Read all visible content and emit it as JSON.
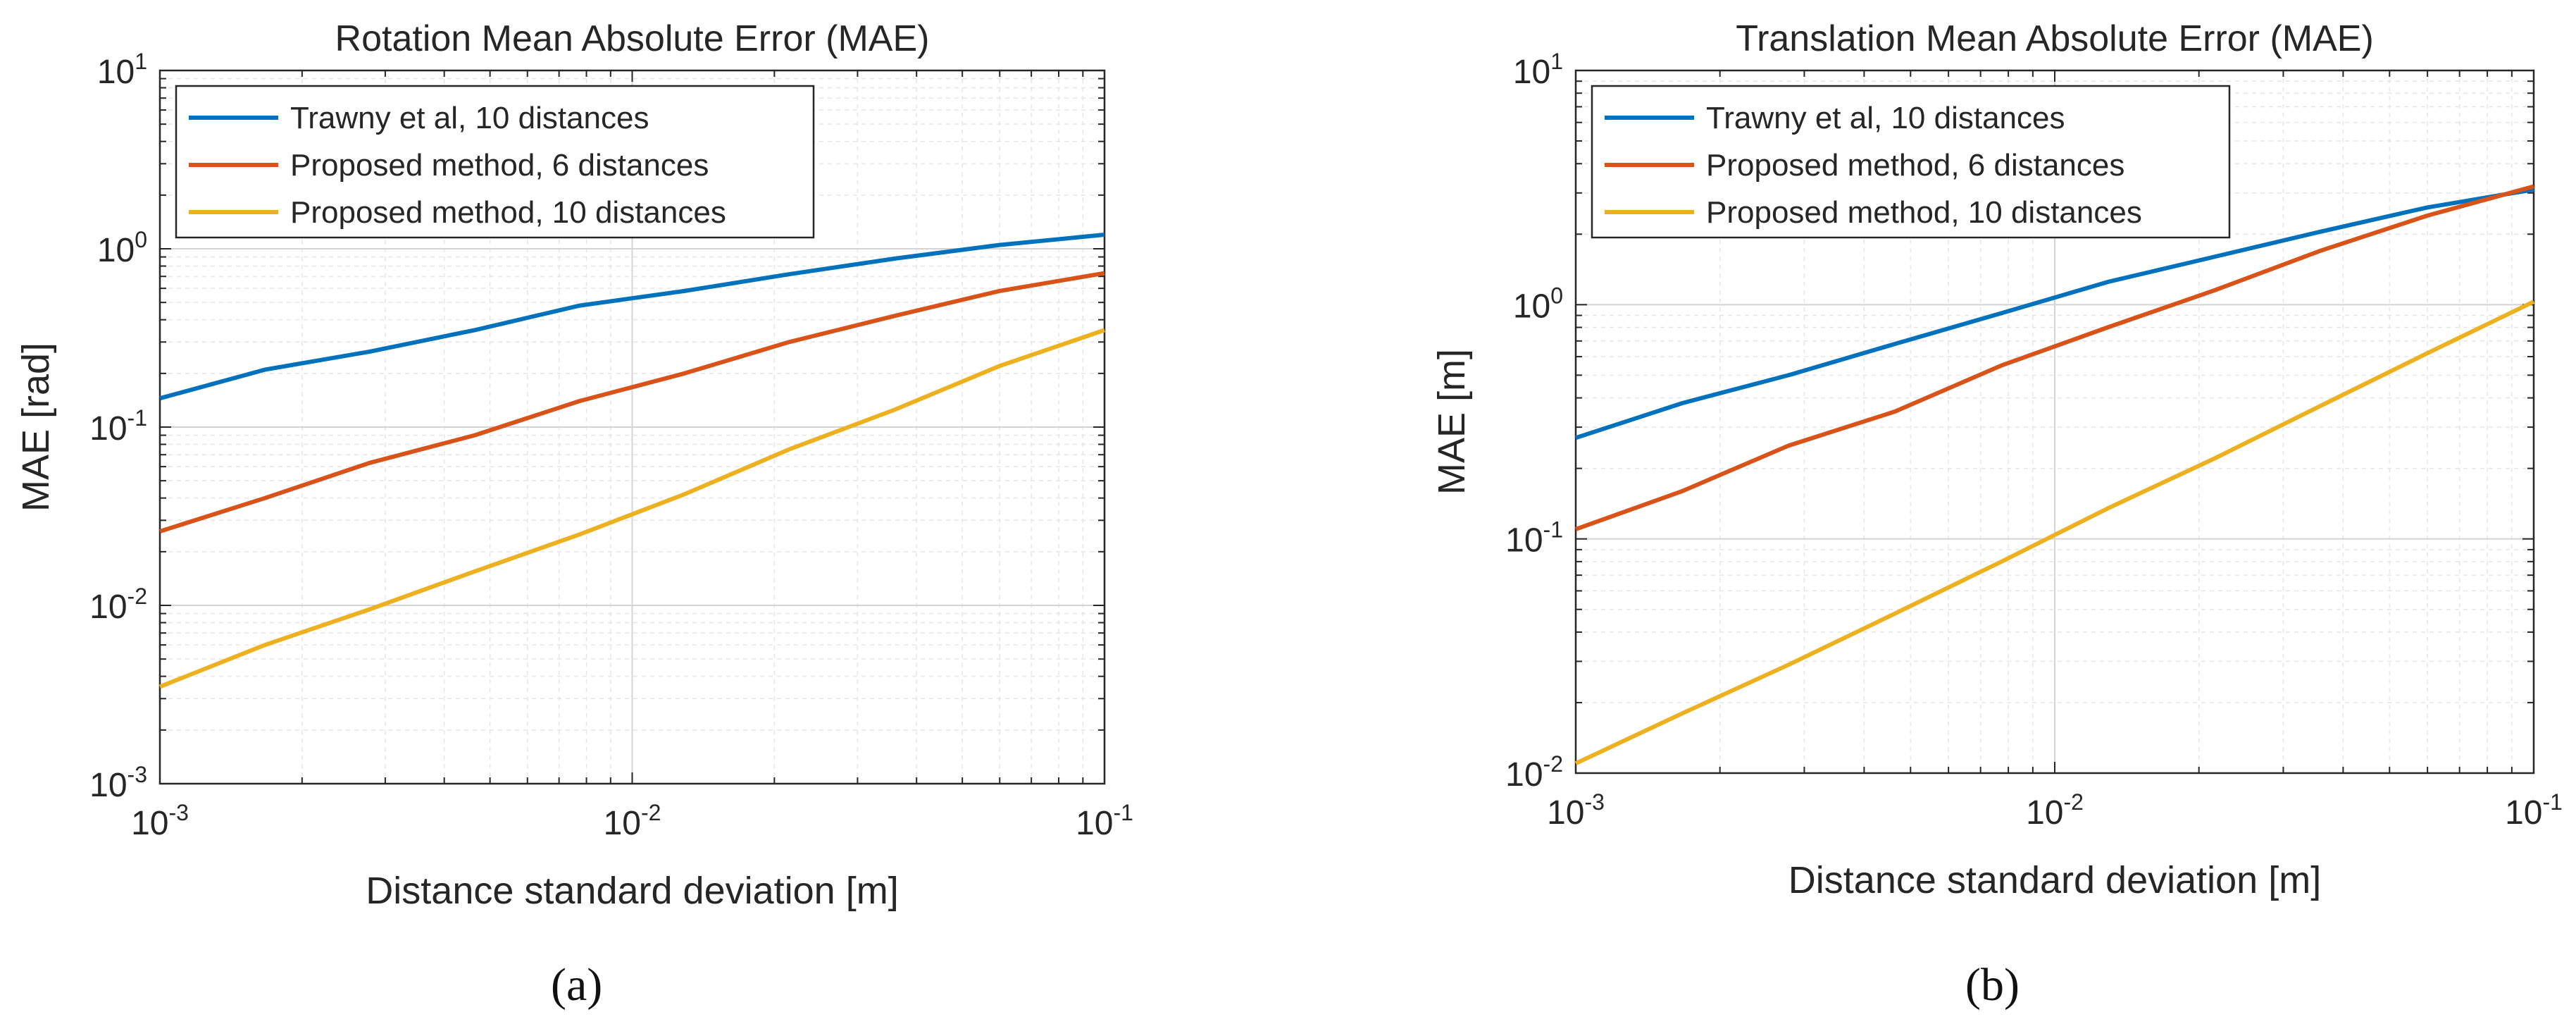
{
  "chart_data": [
    {
      "type": "line",
      "title": "Rotation Mean Absolute Error (MAE)",
      "xlabel": "Distance standard deviation [m]",
      "ylabel": "MAE [rad]",
      "xscale": "log",
      "yscale": "log",
      "xlim": [
        0.001,
        0.1
      ],
      "ylim": [
        0.001,
        10
      ],
      "grid": true,
      "legend_position": "top-left",
      "caption": "(a)",
      "x_ticks": [
        {
          "base": "10",
          "exp": "-3"
        },
        {
          "base": "10",
          "exp": "-2"
        },
        {
          "base": "10",
          "exp": "-1"
        }
      ],
      "y_ticks": [
        {
          "base": "10",
          "exp": "-3"
        },
        {
          "base": "10",
          "exp": "-2"
        },
        {
          "base": "10",
          "exp": "-1"
        },
        {
          "base": "10",
          "exp": "0"
        },
        {
          "base": "10",
          "exp": "1"
        }
      ],
      "x": [
        0.001,
        0.00167,
        0.00278,
        0.00464,
        0.00774,
        0.0129,
        0.0215,
        0.0359,
        0.0599,
        0.1
      ],
      "series": [
        {
          "name": "Trawny et al, 10 distances",
          "color": "#0072BD",
          "values": [
            0.145,
            0.21,
            0.265,
            0.35,
            0.48,
            0.58,
            0.72,
            0.88,
            1.05,
            1.2
          ]
        },
        {
          "name": "Proposed method, 6 distances",
          "color": "#D95319",
          "values": [
            0.026,
            0.04,
            0.063,
            0.09,
            0.14,
            0.2,
            0.3,
            0.42,
            0.58,
            0.73
          ]
        },
        {
          "name": "Proposed method, 10 distances",
          "color": "#EDB120",
          "values": [
            0.0035,
            0.006,
            0.0095,
            0.0155,
            0.025,
            0.042,
            0.075,
            0.125,
            0.22,
            0.35
          ]
        }
      ]
    },
    {
      "type": "line",
      "title": "Translation Mean Absolute Error (MAE)",
      "xlabel": "Distance standard deviation [m]",
      "ylabel": "MAE [m]",
      "xscale": "log",
      "yscale": "log",
      "xlim": [
        0.001,
        0.1
      ],
      "ylim": [
        0.01,
        10
      ],
      "grid": true,
      "legend_position": "top-left",
      "caption": "(b)",
      "x_ticks": [
        {
          "base": "10",
          "exp": "-3"
        },
        {
          "base": "10",
          "exp": "-2"
        },
        {
          "base": "10",
          "exp": "-1"
        }
      ],
      "y_ticks": [
        {
          "base": "10",
          "exp": "-2"
        },
        {
          "base": "10",
          "exp": "-1"
        },
        {
          "base": "10",
          "exp": "0"
        },
        {
          "base": "10",
          "exp": "1"
        }
      ],
      "x": [
        0.001,
        0.00167,
        0.00278,
        0.00464,
        0.00774,
        0.0129,
        0.0215,
        0.0359,
        0.0599,
        0.1
      ],
      "series": [
        {
          "name": "Trawny et al, 10 distances",
          "color": "#0072BD",
          "values": [
            0.27,
            0.38,
            0.5,
            0.68,
            0.92,
            1.25,
            1.6,
            2.05,
            2.6,
            3.1
          ]
        },
        {
          "name": "Proposed method, 6 distances",
          "color": "#D95319",
          "values": [
            0.11,
            0.16,
            0.25,
            0.35,
            0.55,
            0.8,
            1.15,
            1.7,
            2.4,
            3.2
          ]
        },
        {
          "name": "Proposed method, 10 distances",
          "color": "#EDB120",
          "values": [
            0.011,
            0.018,
            0.029,
            0.048,
            0.08,
            0.135,
            0.22,
            0.37,
            0.62,
            1.03
          ]
        }
      ]
    }
  ]
}
